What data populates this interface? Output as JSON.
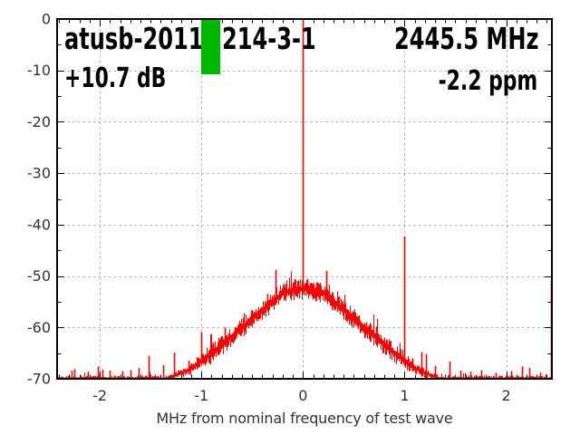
{
  "header": {
    "title_left": "atusb-2011",
    "title_right": "214-3-1",
    "frequency": "2445.5 MHz",
    "gain": "+10.7 dB",
    "ppm_offset": "-2.2 ppm"
  },
  "chart_data": {
    "type": "line",
    "xlabel": "MHz from nominal frequency of test wave",
    "ylabel": "",
    "xlim": [
      -2.42,
      2.45
    ],
    "ylim": [
      -70,
      0
    ],
    "x_ticks": [
      -2,
      -1,
      0,
      1,
      2
    ],
    "y_ticks": [
      0,
      -10,
      -20,
      -30,
      -40,
      -50,
      -60,
      -70
    ],
    "x_minor_step": 0.1,
    "y_minor_step": 5,
    "grid": true,
    "grid_color": "#b0b0b0",
    "trace_color": "#ff0000",
    "noise_floor_db": -69.9,
    "envelope": [
      [
        -2.42,
        -69.9
      ],
      [
        -1.35,
        -69.9
      ],
      [
        -1.3,
        -69.6
      ],
      [
        -1.2,
        -68.9
      ],
      [
        -1.1,
        -67.9
      ],
      [
        -1.0,
        -66.4
      ],
      [
        -0.9,
        -65.0
      ],
      [
        -0.8,
        -63.3
      ],
      [
        -0.7,
        -61.6
      ],
      [
        -0.6,
        -60.0
      ],
      [
        -0.5,
        -58.2
      ],
      [
        -0.4,
        -56.6
      ],
      [
        -0.3,
        -54.9
      ],
      [
        -0.2,
        -53.3
      ],
      [
        -0.15,
        -53.0
      ],
      [
        -0.1,
        -52.8
      ],
      [
        -0.05,
        -52.4
      ],
      [
        0.0,
        -52.6
      ],
      [
        0.05,
        -52.4
      ],
      [
        0.1,
        -52.8
      ],
      [
        0.15,
        -53.0
      ],
      [
        0.2,
        -53.3
      ],
      [
        0.3,
        -54.9
      ],
      [
        0.4,
        -56.6
      ],
      [
        0.5,
        -58.2
      ],
      [
        0.6,
        -60.0
      ],
      [
        0.7,
        -61.6
      ],
      [
        0.8,
        -63.3
      ],
      [
        0.9,
        -65.0
      ],
      [
        1.0,
        -66.4
      ],
      [
        1.1,
        -67.9
      ],
      [
        1.2,
        -68.9
      ],
      [
        1.3,
        -69.6
      ],
      [
        1.35,
        -69.9
      ],
      [
        2.45,
        -69.9
      ]
    ],
    "spikes": [
      [
        -2.28,
        -68.4
      ],
      [
        -2.25,
        -68.1
      ],
      [
        -2.12,
        -68.6
      ],
      [
        -2.02,
        -67.6
      ],
      [
        -1.97,
        -68.2
      ],
      [
        -1.9,
        -68.4
      ],
      [
        -1.78,
        -68.5
      ],
      [
        -1.7,
        -68.3
      ],
      [
        -1.62,
        -67.9
      ],
      [
        -1.52,
        -65.5
      ],
      [
        -1.38,
        -67.3
      ],
      [
        -1.27,
        -64.9
      ],
      [
        -1.13,
        -66.5
      ],
      [
        -1.0,
        -60.9
      ],
      [
        -0.89,
        -63.0
      ],
      [
        -0.77,
        -60.0
      ],
      [
        -0.68,
        -61.0
      ],
      [
        -0.5,
        -56.8
      ],
      [
        -0.35,
        -53.5
      ],
      [
        -0.27,
        -48.8
      ],
      [
        -0.12,
        -51.4
      ],
      [
        -0.08,
        -50.6
      ],
      [
        -0.045,
        -50.9
      ],
      [
        0.0,
        0.0
      ],
      [
        0.045,
        -50.6
      ],
      [
        0.08,
        -51.3
      ],
      [
        0.16,
        -51.8
      ],
      [
        0.23,
        -49.0
      ],
      [
        0.35,
        -54.0
      ],
      [
        0.5,
        -57.0
      ],
      [
        0.62,
        -59.2
      ],
      [
        0.72,
        -59.8
      ],
      [
        0.85,
        -63.5
      ],
      [
        1.0,
        -42.3
      ],
      [
        1.08,
        -66.0
      ],
      [
        1.17,
        -64.8
      ],
      [
        1.21,
        -65.2
      ],
      [
        1.3,
        -67.5
      ],
      [
        1.44,
        -66.6
      ],
      [
        1.55,
        -68.4
      ],
      [
        1.65,
        -68.6
      ],
      [
        1.75,
        -68.3
      ],
      [
        1.9,
        -68.8
      ],
      [
        2.05,
        -68.5
      ],
      [
        2.16,
        -67.6
      ],
      [
        2.23,
        -67.9
      ],
      [
        2.33,
        -68.8
      ],
      [
        2.44,
        -50.9
      ]
    ],
    "marker_box": {
      "x1": -1.005,
      "x2": -0.8125,
      "db_top": 0,
      "db_bottom": -10.7,
      "color": "#00b800"
    }
  }
}
